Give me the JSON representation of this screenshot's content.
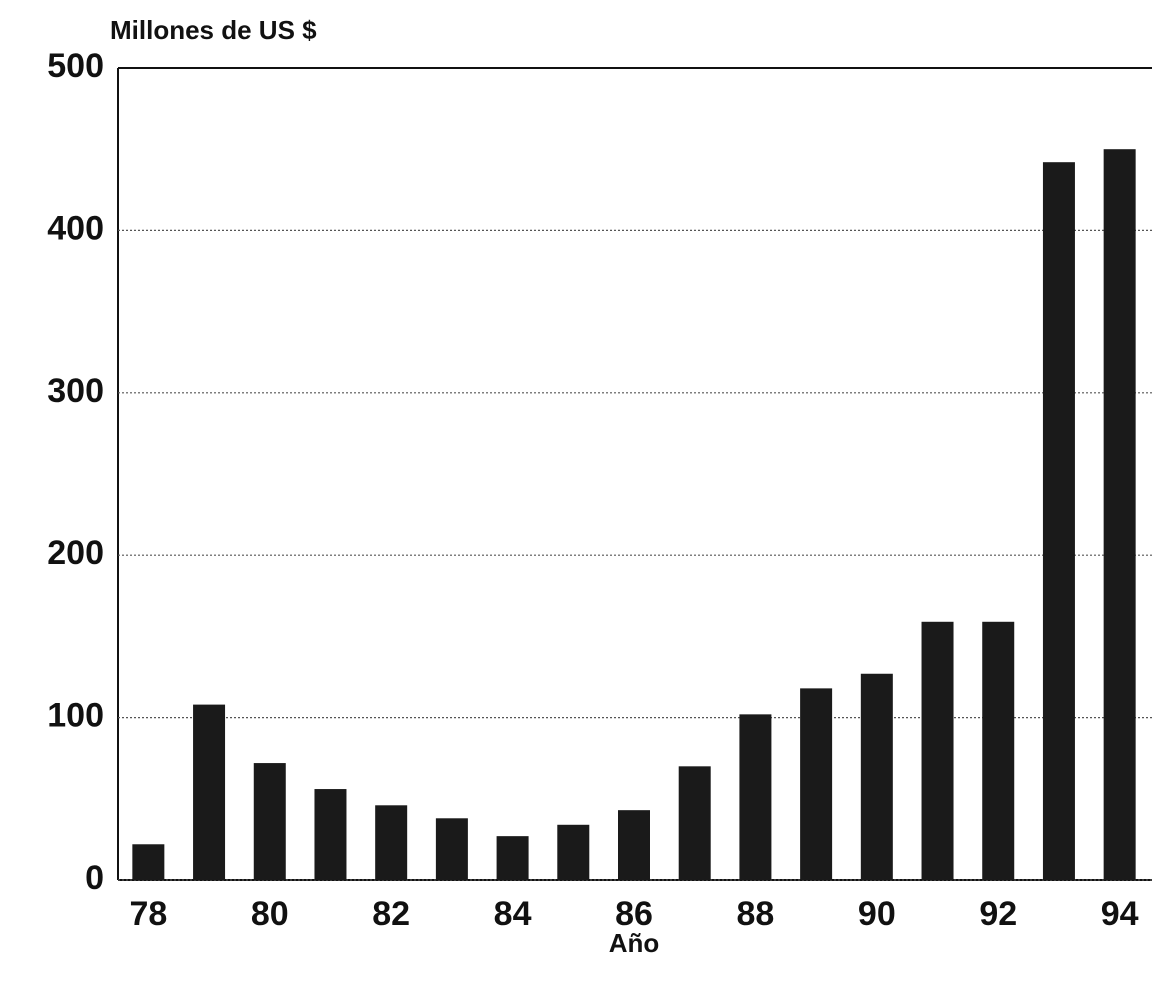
{
  "chart_data": {
    "type": "bar",
    "y_label": "Millones de US $",
    "x_label": "Año",
    "categories": [
      "78",
      null,
      "80",
      null,
      "82",
      null,
      "84",
      null,
      "86",
      null,
      "88",
      null,
      "90",
      null,
      "92",
      null,
      "94"
    ],
    "values": [
      22,
      108,
      72,
      56,
      46,
      38,
      27,
      34,
      43,
      70,
      102,
      118,
      127,
      159,
      159,
      442,
      450
    ],
    "color": "#1a1a1a",
    "ylim": [
      0,
      500
    ],
    "yticks": [
      0,
      100,
      200,
      300,
      400,
      500
    ],
    "grid": true
  }
}
